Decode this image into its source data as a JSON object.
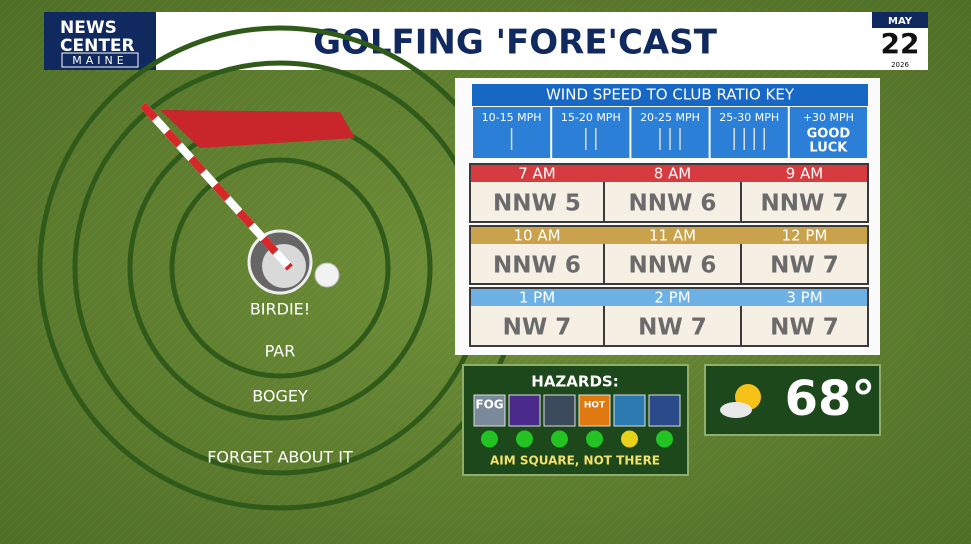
{
  "header": {
    "logo": [
      "NEWS",
      "CENTER",
      "MAINE"
    ],
    "title": "GOLFING 'FORE'CAST",
    "date": {
      "month": "MAY",
      "day": "22",
      "year": "2026"
    }
  },
  "target": {
    "rings": [
      "BIRDIE!",
      "PAR",
      "BOGEY",
      "FORGET ABOUT IT"
    ]
  },
  "wind_key": {
    "title": "WIND SPEED TO CLUB RATIO KEY",
    "ranges": [
      "10-15 MPH",
      "15-20 MPH",
      "20-25 MPH",
      "25-30 MPH"
    ],
    "extra": {
      "label": "+30 MPH",
      "note": [
        "GOOD",
        "LUCK"
      ]
    }
  },
  "forecast": [
    {
      "color": "#d63b3f",
      "times": [
        "7 AM",
        "8 AM",
        "9 AM"
      ],
      "winds": [
        "NNW 5",
        "NNW 6",
        "NNW 7"
      ]
    },
    {
      "color": "#c9a24b",
      "times": [
        "10 AM",
        "11 AM",
        "12 PM"
      ],
      "winds": [
        "NNW 6",
        "NNW 6",
        "NW 7"
      ]
    },
    {
      "color": "#6eb1e4",
      "times": [
        "1 PM",
        "2 PM",
        "3 PM"
      ],
      "winds": [
        "NW 7",
        "NW 7",
        "NW 7"
      ]
    }
  ],
  "hazards": {
    "title": "HAZARDS:",
    "icons": [
      "FOG",
      "HOT"
    ],
    "status": [
      "#22c322",
      "#22c322",
      "#22c322",
      "#22c322",
      "#e8d21a",
      "#22c322"
    ],
    "footer": "AIM SQUARE, NOT THERE"
  },
  "temperature": "68°"
}
